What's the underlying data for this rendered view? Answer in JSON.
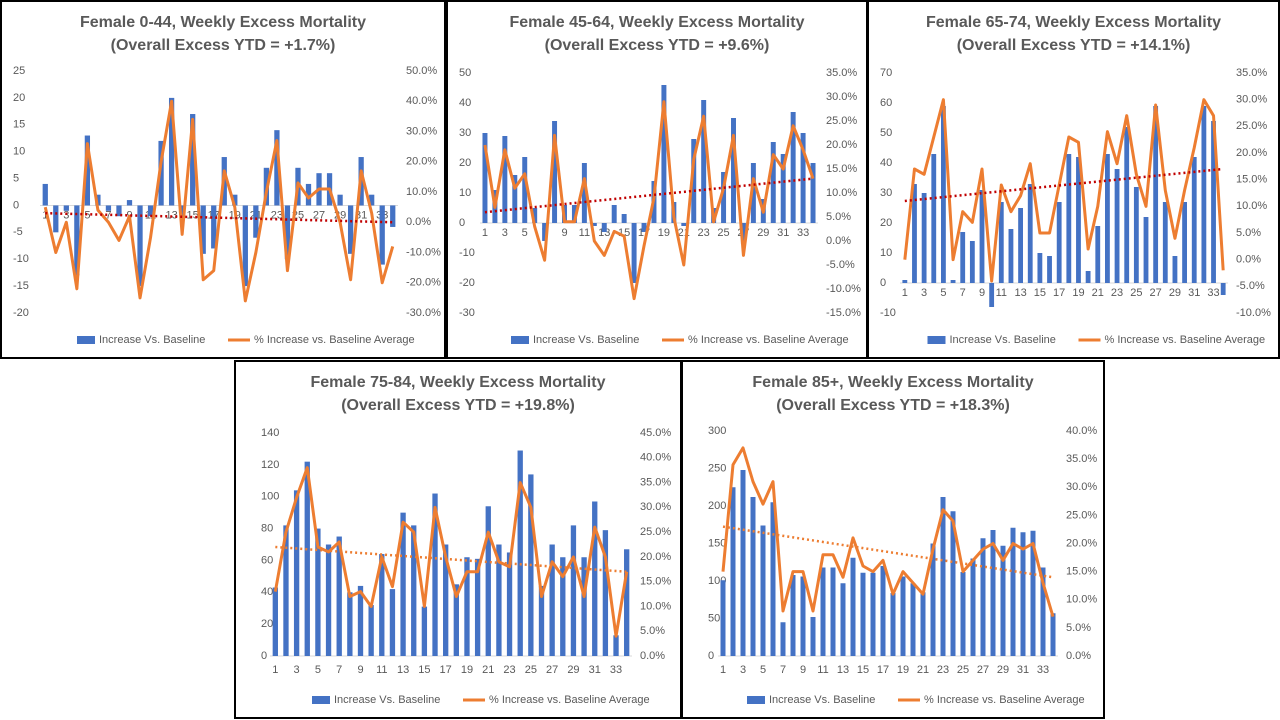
{
  "chart_data": [
    {
      "type": "bar_line",
      "title": "Female 0-44, Weekly Excess Mortality",
      "subtitle": "(Overall Excess YTD = +1.7%)",
      "categories": [
        1,
        null,
        3,
        null,
        5,
        null,
        7,
        null,
        9,
        null,
        11,
        null,
        13,
        null,
        15,
        null,
        17,
        null,
        19,
        null,
        21,
        null,
        23,
        null,
        25,
        null,
        27,
        null,
        29,
        null,
        31,
        null,
        33,
        null
      ],
      "series": [
        {
          "name": "Increase Vs. Baseline",
          "color": "#4472c4",
          "values": [
            4,
            -5,
            -1,
            -13,
            13,
            2,
            -1,
            -2,
            1,
            -15,
            -2,
            12,
            20,
            -2,
            17,
            -9,
            -8,
            9,
            2,
            -15,
            -6,
            7,
            14,
            -10,
            7,
            4,
            6,
            6,
            2,
            -9,
            9,
            2,
            -11,
            -4
          ]
        },
        {
          "name": "% Increase vs. Baseline Average",
          "color": "#ed7d31",
          "axis": "y2",
          "values": [
            5,
            -10,
            0,
            -22,
            26,
            4,
            0,
            -6,
            2,
            -25,
            -5,
            20,
            40,
            -4,
            34,
            -19,
            -16,
            17,
            5,
            -26,
            -10,
            10,
            27,
            -16,
            13,
            8,
            11,
            11,
            0,
            -19,
            17,
            3,
            -20,
            -8
          ]
        }
      ],
      "trendline": {
        "color": "#c00000",
        "axis": "y2",
        "values": [
          3,
          0
        ]
      },
      "ylim": [
        -20,
        25
      ],
      "yticks": [
        -20,
        -15,
        -10,
        -5,
        0,
        5,
        10,
        15,
        20,
        25
      ],
      "y2lim": [
        -30,
        50
      ],
      "y2ticks": [
        {
          "value": -30,
          "label": "-30.0%"
        },
        {
          "value": -20,
          "label": "-20.0%"
        },
        {
          "value": -10,
          "label": "-10.0%"
        },
        {
          "value": 0,
          "label": "0.0%"
        },
        {
          "value": 10,
          "label": "10.0%"
        },
        {
          "value": 20,
          "label": "20.0%"
        },
        {
          "value": 30,
          "label": "30.0%"
        },
        {
          "value": 40,
          "label": "40.0%"
        },
        {
          "value": 50,
          "label": "50.0%"
        }
      ],
      "legend": "bottom"
    },
    {
      "type": "bar_line",
      "title": "Female 45-64, Weekly Excess Mortality",
      "subtitle": "(Overall Excess YTD = +9.6%)",
      "categories": [
        1,
        null,
        3,
        null,
        5,
        null,
        7,
        null,
        9,
        null,
        11,
        null,
        13,
        null,
        15,
        null,
        17,
        null,
        19,
        null,
        21,
        null,
        23,
        null,
        25,
        null,
        27,
        null,
        29,
        null,
        31,
        null,
        33,
        null
      ],
      "series": [
        {
          "name": "Increase Vs. Baseline",
          "color": "#4472c4",
          "values": [
            30,
            11,
            29,
            16,
            22,
            5,
            -6,
            34,
            6,
            6,
            20,
            -1,
            -3,
            6,
            3,
            -20,
            -3,
            14,
            46,
            7,
            -1,
            28,
            41,
            5,
            17,
            35,
            -7,
            20,
            8,
            27,
            23,
            37,
            30,
            20
          ]
        },
        {
          "name": "% Increase vs. Baseline Average",
          "color": "#ed7d31",
          "axis": "y2",
          "values": [
            20,
            7,
            19,
            11,
            14,
            3,
            -4,
            22,
            4,
            4,
            13,
            0,
            -3,
            2,
            1,
            -12,
            -1,
            9,
            29,
            5,
            -5,
            17,
            26,
            4,
            11,
            22,
            -3,
            13,
            6,
            18,
            15,
            24,
            19,
            13
          ]
        }
      ],
      "trendline": {
        "color": "#c00000",
        "axis": "y2",
        "values": [
          6,
          13
        ]
      },
      "ylim": [
        -30,
        50
      ],
      "yticks": [
        -30,
        -20,
        -10,
        0,
        10,
        20,
        30,
        40,
        50
      ],
      "y2lim": [
        -15,
        35
      ],
      "y2ticks": [
        {
          "value": -15,
          "label": "-15.0%"
        },
        {
          "value": -10,
          "label": "-10.0%"
        },
        {
          "value": -5,
          "label": "-5.0%"
        },
        {
          "value": 0,
          "label": "0.0%"
        },
        {
          "value": 5,
          "label": "5.0%"
        },
        {
          "value": 10,
          "label": "10.0%"
        },
        {
          "value": 15,
          "label": "15.0%"
        },
        {
          "value": 20,
          "label": "20.0%"
        },
        {
          "value": 25,
          "label": "25.0%"
        },
        {
          "value": 30,
          "label": "30.0%"
        },
        {
          "value": 35,
          "label": "35.0%"
        }
      ],
      "legend": "bottom"
    },
    {
      "type": "bar_line",
      "title": "Female 65-74, Weekly Excess Mortality",
      "subtitle": "(Overall Excess YTD = +14.1%)",
      "categories": [
        1,
        null,
        3,
        null,
        5,
        null,
        7,
        null,
        9,
        null,
        11,
        null,
        13,
        null,
        15,
        null,
        17,
        null,
        19,
        null,
        21,
        null,
        23,
        null,
        25,
        null,
        27,
        null,
        29,
        null,
        31,
        null,
        33,
        null
      ],
      "series": [
        {
          "name": "Increase Vs. Baseline",
          "color": "#4472c4",
          "values": [
            1,
            33,
            30,
            43,
            59,
            1,
            17,
            14,
            31,
            -8,
            27,
            18,
            25,
            33,
            10,
            9,
            27,
            43,
            42,
            4,
            19,
            43,
            38,
            52,
            32,
            22,
            59,
            27,
            9,
            27,
            42,
            59,
            54,
            -4
          ]
        },
        {
          "name": "% Increase vs. Baseline Average",
          "color": "#ed7d31",
          "axis": "y2",
          "values": [
            0,
            17,
            16,
            23,
            30,
            0,
            9,
            7,
            17,
            -4,
            14,
            9,
            12,
            18,
            5,
            5,
            14,
            23,
            22,
            2,
            10,
            24,
            18,
            27,
            16,
            10,
            29,
            13,
            4,
            13,
            21,
            30,
            27,
            -2
          ]
        }
      ],
      "trendline": {
        "color": "#c00000",
        "axis": "y2",
        "values": [
          11,
          17
        ]
      },
      "ylim": [
        -10,
        70
      ],
      "yticks": [
        -10,
        0,
        10,
        20,
        30,
        40,
        50,
        60,
        70
      ],
      "y2lim": [
        -10,
        35
      ],
      "y2ticks": [
        {
          "value": -10,
          "label": "-10.0%"
        },
        {
          "value": -5,
          "label": "-5.0%"
        },
        {
          "value": 0,
          "label": "0.0%"
        },
        {
          "value": 5,
          "label": "5.0%"
        },
        {
          "value": 10,
          "label": "10.0%"
        },
        {
          "value": 15,
          "label": "15.0%"
        },
        {
          "value": 20,
          "label": "20.0%"
        },
        {
          "value": 25,
          "label": "25.0%"
        },
        {
          "value": 30,
          "label": "30.0%"
        },
        {
          "value": 35,
          "label": "35.0%"
        }
      ],
      "legend": "bottom"
    },
    {
      "type": "bar_line",
      "title": "Female 75-84, Weekly Excess Mortality",
      "subtitle": "(Overall Excess YTD = +19.8%)",
      "categories": [
        1,
        null,
        3,
        null,
        5,
        null,
        7,
        null,
        9,
        null,
        11,
        null,
        13,
        null,
        15,
        null,
        17,
        null,
        19,
        null,
        21,
        null,
        23,
        null,
        25,
        null,
        27,
        null,
        29,
        null,
        31,
        null,
        33,
        null
      ],
      "series": [
        {
          "name": "Increase Vs. Baseline",
          "color": "#4472c4",
          "values": [
            43,
            82,
            104,
            122,
            80,
            70,
            75,
            40,
            44,
            32,
            64,
            42,
            90,
            82,
            31,
            102,
            70,
            45,
            62,
            61,
            94,
            70,
            65,
            129,
            114,
            44,
            70,
            62,
            82,
            62,
            97,
            79,
            13,
            67
          ]
        },
        {
          "name": "% Increase vs. Baseline Average",
          "color": "#ed7d31",
          "axis": "y2",
          "values": [
            13,
            25,
            32,
            38,
            22,
            21,
            23,
            12,
            13,
            10,
            20,
            14,
            27,
            25,
            10,
            30,
            20,
            12,
            17,
            17,
            25,
            19,
            18,
            35,
            30,
            12,
            19,
            16,
            20,
            12,
            26,
            20,
            4,
            17
          ]
        }
      ],
      "trendline": {
        "color": "#ed7d31",
        "axis": "y2",
        "values": [
          22,
          17
        ]
      },
      "ylim": [
        0,
        140
      ],
      "yticks": [
        0,
        20,
        40,
        60,
        80,
        100,
        120,
        140
      ],
      "y2lim": [
        0,
        45
      ],
      "y2ticks": [
        {
          "value": 0,
          "label": "0.0%"
        },
        {
          "value": 5,
          "label": "5.0%"
        },
        {
          "value": 10,
          "label": "10.0%"
        },
        {
          "value": 15,
          "label": "15.0%"
        },
        {
          "value": 20,
          "label": "20.0%"
        },
        {
          "value": 25,
          "label": "25.0%"
        },
        {
          "value": 30,
          "label": "30.0%"
        },
        {
          "value": 35,
          "label": "35.0%"
        },
        {
          "value": 40,
          "label": "40.0%"
        },
        {
          "value": 45,
          "label": "45.0%"
        }
      ],
      "legend": "bottom"
    },
    {
      "type": "bar_line",
      "title": "Female 85+, Weekly Excess Mortality",
      "subtitle": "(Overall Excess YTD = +18.3%)",
      "categories": [
        1,
        null,
        3,
        null,
        5,
        null,
        7,
        null,
        9,
        null,
        11,
        null,
        13,
        null,
        15,
        null,
        17,
        null,
        19,
        null,
        21,
        null,
        23,
        null,
        25,
        null,
        27,
        null,
        29,
        null,
        31,
        null,
        33,
        null
      ],
      "series": [
        {
          "name": "Increase Vs. Baseline",
          "color": "#4472c4",
          "values": [
            101,
            225,
            248,
            212,
            174,
            205,
            45,
            108,
            106,
            52,
            118,
            118,
            97,
            131,
            111,
            111,
            120,
            84,
            106,
            97,
            85,
            150,
            212,
            193,
            112,
            130,
            157,
            168,
            147,
            171,
            165,
            167,
            118,
            57
          ]
        },
        {
          "name": "% Increase vs. Baseline Average",
          "color": "#ed7d31",
          "axis": "y2",
          "values": [
            15,
            34,
            37,
            31,
            27,
            31,
            8,
            15,
            15,
            8,
            18,
            18,
            14,
            21,
            16,
            15,
            17,
            11,
            15,
            13,
            11,
            19,
            26,
            24,
            15,
            17,
            19,
            20,
            17,
            20,
            19,
            20,
            13,
            7
          ]
        }
      ],
      "trendline": {
        "color": "#ed7d31",
        "axis": "y2",
        "values": [
          23,
          14
        ]
      },
      "ylim": [
        0,
        300
      ],
      "yticks": [
        0,
        50,
        100,
        150,
        200,
        250,
        300
      ],
      "y2lim": [
        0,
        40
      ],
      "y2ticks": [
        {
          "value": 0,
          "label": "0.0%"
        },
        {
          "value": 5,
          "label": "5.0%"
        },
        {
          "value": 10,
          "label": "10.0%"
        },
        {
          "value": 15,
          "label": "15.0%"
        },
        {
          "value": 20,
          "label": "20.0%"
        },
        {
          "value": 25,
          "label": "25.0%"
        },
        {
          "value": 30,
          "label": "30.0%"
        },
        {
          "value": 35,
          "label": "35.0%"
        },
        {
          "value": 40,
          "label": "40.0%"
        }
      ],
      "legend": "bottom"
    }
  ]
}
